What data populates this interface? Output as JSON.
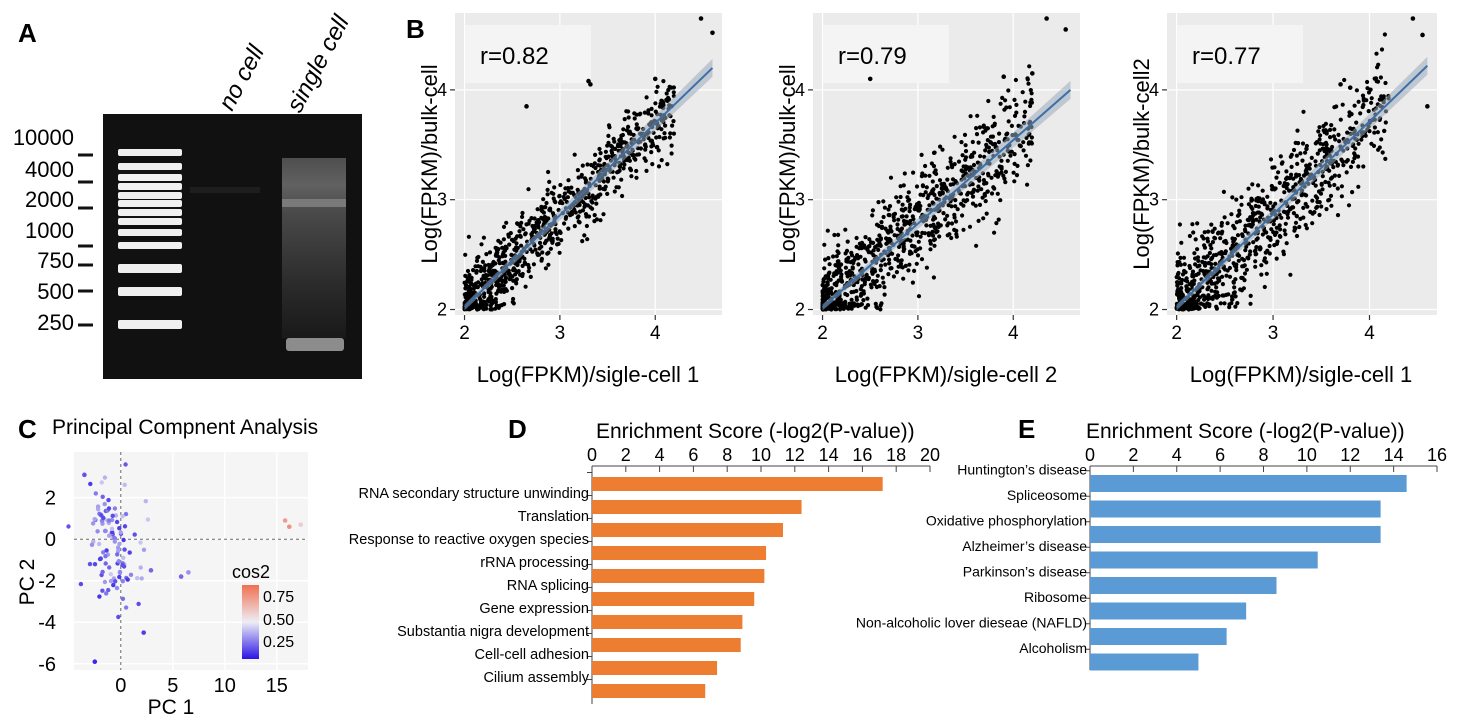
{
  "panels": {
    "A": {
      "letter": "A",
      "lanes": [
        "no cell",
        "single cell"
      ],
      "ladder_labels": [
        "10000",
        "4000",
        "2000",
        "1000",
        "750",
        "500",
        "250"
      ]
    },
    "B": {
      "letter": "B"
    },
    "C": {
      "letter": "C"
    },
    "D": {
      "letter": "D"
    },
    "E": {
      "letter": "E"
    }
  },
  "colors": {
    "orange": "#ED7D31",
    "blue": "#5B9BD5",
    "scatter_bg": "#EBEBEB",
    "gel_bg": "#111111"
  },
  "chart_data": [
    {
      "id": "B1",
      "type": "scatter",
      "annotation": "r=0.82",
      "xlabel": "Log(FPKM)/sigle-cell 1",
      "ylabel": "Log(FPKM)/bulk-cell",
      "xlim": [
        1.9,
        4.7
      ],
      "ylim": [
        1.95,
        4.7
      ],
      "xticks": [
        2,
        3,
        4
      ],
      "yticks": [
        2,
        3,
        4
      ],
      "fit": {
        "x": [
          2.0,
          4.6
        ],
        "y": [
          2.02,
          4.2
        ]
      },
      "outliers": [
        [
          4.48,
          4.65
        ],
        [
          4.6,
          4.52
        ],
        [
          3.3,
          4.08
        ],
        [
          3.32,
          4.05
        ],
        [
          2.65,
          3.85
        ],
        [
          4.0,
          4.1
        ]
      ],
      "n_points": 900,
      "spread": 0.17
    },
    {
      "id": "B2",
      "type": "scatter",
      "annotation": "r=0.79",
      "xlabel": "Log(FPKM)/sigle-cell 2",
      "ylabel": "Log(FPKM)/bulk-cell",
      "xlim": [
        1.9,
        4.7
      ],
      "ylim": [
        1.95,
        4.7
      ],
      "xticks": [
        2,
        3,
        4
      ],
      "yticks": [
        2,
        3,
        4
      ],
      "fit": {
        "x": [
          2.0,
          4.6
        ],
        "y": [
          2.02,
          4.0
        ]
      },
      "outliers": [
        [
          4.35,
          4.65
        ],
        [
          4.55,
          4.55
        ],
        [
          2.5,
          4.1
        ],
        [
          3.9,
          4.12
        ],
        [
          4.2,
          4.15
        ]
      ],
      "n_points": 900,
      "spread": 0.23
    },
    {
      "id": "B3",
      "type": "scatter",
      "annotation": "r=0.77",
      "xlabel": "Log(FPKM)/sigle-cell 1",
      "ylabel": "Log(FPKM)/bulk-cell2",
      "xlim": [
        1.9,
        4.7
      ],
      "ylim": [
        1.95,
        4.7
      ],
      "xticks": [
        2,
        3,
        4
      ],
      "yticks": [
        2,
        3,
        4
      ],
      "fit": {
        "x": [
          2.0,
          4.6
        ],
        "y": [
          2.02,
          4.22
        ]
      },
      "outliers": [
        [
          4.45,
          4.65
        ],
        [
          4.55,
          4.5
        ],
        [
          3.7,
          4.05
        ],
        [
          3.8,
          4.02
        ],
        [
          4.6,
          3.85
        ]
      ],
      "n_points": 900,
      "spread": 0.24
    },
    {
      "id": "C",
      "type": "scatter",
      "title": "Principal Compnent Analysis",
      "xlabel": "PC 1",
      "ylabel": "PC 2",
      "xlim": [
        -4.5,
        18
      ],
      "ylim": [
        -6.3,
        4.2
      ],
      "xticks": [
        0,
        5,
        10,
        15
      ],
      "yticks": [
        2,
        0,
        -2,
        -4,
        -6
      ],
      "ytick_labels": [
        "2",
        "0",
        "-2",
        "-4",
        "-6"
      ],
      "legend": {
        "title": "cos2",
        "labels": [
          "0.75",
          "0.50",
          "0.25"
        ]
      },
      "outliers": [
        [
          15.8,
          0.9,
          0.8
        ],
        [
          16.2,
          0.6,
          0.85
        ],
        [
          17.3,
          0.7,
          0.6
        ],
        [
          5.8,
          -1.8,
          0.2
        ],
        [
          6.5,
          -1.6,
          0.3
        ],
        [
          2.2,
          -4.5,
          0.1
        ],
        [
          -2.5,
          -5.9,
          0.05
        ],
        [
          -3.5,
          3.1,
          0.15
        ],
        [
          2.9,
          -1.5,
          0.2
        ]
      ],
      "n_points": 110
    },
    {
      "id": "D",
      "type": "bar",
      "orientation": "horizontal",
      "title": "Enrichment Score (-log2(P-value))",
      "xlim": [
        0,
        20
      ],
      "xticks": [
        0,
        2,
        4,
        6,
        8,
        10,
        12,
        14,
        16,
        18,
        20
      ],
      "categories": [
        "",
        "RNA secondary structure unwinding",
        "Translation",
        "Response to reactive oxygen species",
        "rRNA processing",
        "RNA splicing",
        "Gene expression",
        "Substantia nigra development",
        "Cell-cell adhesion",
        "Cilium assembly"
      ],
      "values": [
        17.2,
        12.4,
        11.3,
        10.3,
        10.2,
        9.6,
        8.9,
        8.8,
        7.4,
        6.7
      ],
      "color": "#ED7D31"
    },
    {
      "id": "E",
      "type": "bar",
      "orientation": "horizontal",
      "title": "Enrichment Score (-log2(P-value))",
      "xlim": [
        0,
        16
      ],
      "xticks": [
        0,
        2,
        4,
        6,
        8,
        10,
        12,
        14,
        16
      ],
      "categories": [
        "Huntington’s disease",
        "Spliceosome",
        "Oxidative phosphorylation",
        "Alzheimer’s disease",
        "Parkinson’s disease",
        "Ribosome",
        "Non-alcoholic lover dieseae (NAFLD)",
        "Alcoholism"
      ],
      "values": [
        14.6,
        13.4,
        13.4,
        10.5,
        8.6,
        7.2,
        6.3,
        5.0
      ],
      "color": "#5B9BD5"
    }
  ]
}
